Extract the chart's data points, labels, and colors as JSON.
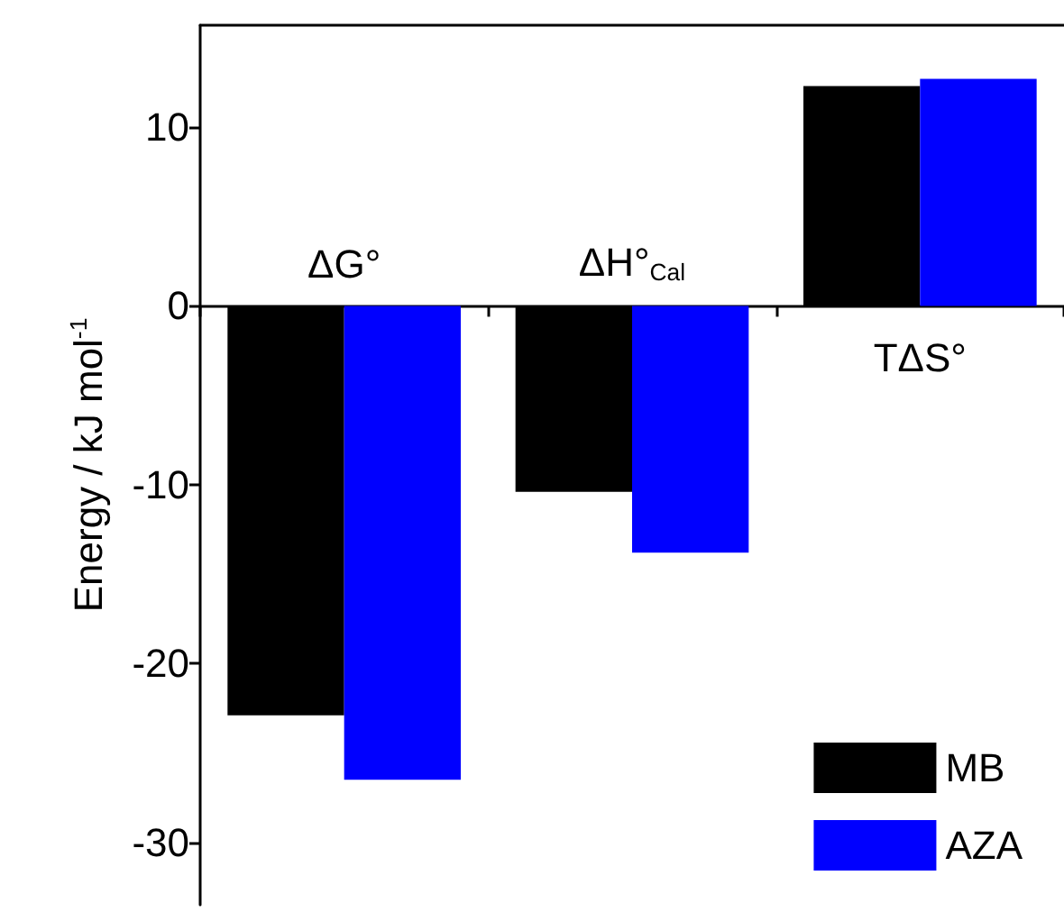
{
  "chart_data": {
    "type": "bar",
    "ylabel": "Energy / kJ mol$^{-1}$",
    "categories": [
      "ΔG°",
      "ΔH°$_{Cal}$",
      "TΔS°"
    ],
    "series": [
      {
        "name": "MB",
        "color": "#000000",
        "values": [
          -22.9,
          -10.4,
          12.3
        ]
      },
      {
        "name": "AZA",
        "color": "#0000ff",
        "values": [
          -26.5,
          -13.8,
          12.7
        ]
      }
    ],
    "ylim": [
      -33.5,
      15.7
    ],
    "yticks": [
      -30,
      -20,
      -10,
      0,
      10
    ],
    "grid": false,
    "legend": "bottom right"
  }
}
